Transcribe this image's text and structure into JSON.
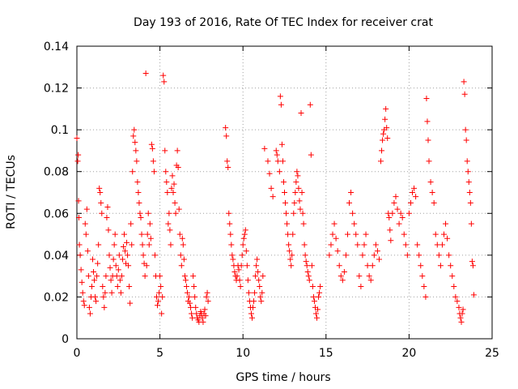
{
  "chart_data": {
    "type": "scatter",
    "title": "Day 193 of 2016, Rate Of TEC Index for receiver crat",
    "xlabel": "GPS time / hours",
    "ylabel": "ROTI / TECUs",
    "xlim": [
      0,
      25
    ],
    "ylim": [
      0,
      0.14
    ],
    "x_ticks": [
      "0",
      "5",
      "10",
      "15",
      "20",
      "25"
    ],
    "y_ticks": [
      "0",
      "0.02",
      "0.04",
      "0.06",
      "0.08",
      "0.1",
      "0.12",
      "0.14"
    ],
    "grid": true,
    "marker": "+",
    "color": "#ff0000",
    "points": [
      [
        0.0,
        0.096
      ],
      [
        0.05,
        0.085
      ],
      [
        0.08,
        0.088
      ],
      [
        0.1,
        0.066
      ],
      [
        0.12,
        0.058
      ],
      [
        0.15,
        0.045
      ],
      [
        0.2,
        0.04
      ],
      [
        0.25,
        0.033
      ],
      [
        0.3,
        0.027
      ],
      [
        0.35,
        0.022
      ],
      [
        0.4,
        0.018
      ],
      [
        0.45,
        0.016
      ],
      [
        0.5,
        0.055
      ],
      [
        0.55,
        0.05
      ],
      [
        0.6,
        0.062
      ],
      [
        0.65,
        0.042
      ],
      [
        0.7,
        0.03
      ],
      [
        0.75,
        0.015
      ],
      [
        0.8,
        0.012
      ],
      [
        0.85,
        0.02
      ],
      [
        0.9,
        0.025
      ],
      [
        0.95,
        0.038
      ],
      [
        1.0,
        0.032
      ],
      [
        1.05,
        0.028
      ],
      [
        1.1,
        0.02
      ],
      [
        1.15,
        0.018
      ],
      [
        1.2,
        0.03
      ],
      [
        1.25,
        0.036
      ],
      [
        1.3,
        0.045
      ],
      [
        1.35,
        0.072
      ],
      [
        1.4,
        0.07
      ],
      [
        1.45,
        0.065
      ],
      [
        1.5,
        0.06
      ],
      [
        1.55,
        0.025
      ],
      [
        1.6,
        0.02
      ],
      [
        1.65,
        0.015
      ],
      [
        1.7,
        0.022
      ],
      [
        1.75,
        0.03
      ],
      [
        1.8,
        0.058
      ],
      [
        1.85,
        0.063
      ],
      [
        1.9,
        0.052
      ],
      [
        1.95,
        0.04
      ],
      [
        2.0,
        0.034
      ],
      [
        2.05,
        0.028
      ],
      [
        2.1,
        0.022
      ],
      [
        2.15,
        0.03
      ],
      [
        2.2,
        0.038
      ],
      [
        2.25,
        0.045
      ],
      [
        2.3,
        0.05
      ],
      [
        2.35,
        0.035
      ],
      [
        2.4,
        0.03
      ],
      [
        2.45,
        0.025
      ],
      [
        2.5,
        0.033
      ],
      [
        2.55,
        0.04
      ],
      [
        2.6,
        0.028
      ],
      [
        2.65,
        0.022
      ],
      [
        2.7,
        0.03
      ],
      [
        2.75,
        0.038
      ],
      [
        2.8,
        0.044
      ],
      [
        2.85,
        0.05
      ],
      [
        2.9,
        0.042
      ],
      [
        2.95,
        0.036
      ],
      [
        3.0,
        0.046
      ],
      [
        3.05,
        0.04
      ],
      [
        3.1,
        0.035
      ],
      [
        3.15,
        0.025
      ],
      [
        3.2,
        0.017
      ],
      [
        3.25,
        0.055
      ],
      [
        3.3,
        0.045
      ],
      [
        3.35,
        0.08
      ],
      [
        3.4,
        0.097
      ],
      [
        3.45,
        0.1
      ],
      [
        3.5,
        0.094
      ],
      [
        3.55,
        0.09
      ],
      [
        3.6,
        0.085
      ],
      [
        3.65,
        0.075
      ],
      [
        3.7,
        0.07
      ],
      [
        3.75,
        0.065
      ],
      [
        3.8,
        0.06
      ],
      [
        3.85,
        0.058
      ],
      [
        3.9,
        0.05
      ],
      [
        3.95,
        0.045
      ],
      [
        4.0,
        0.04
      ],
      [
        4.05,
        0.036
      ],
      [
        4.1,
        0.03
      ],
      [
        4.15,
        0.127
      ],
      [
        4.2,
        0.035
      ],
      [
        4.25,
        0.05
      ],
      [
        4.3,
        0.06
      ],
      [
        4.35,
        0.045
      ],
      [
        4.4,
        0.055
      ],
      [
        4.45,
        0.048
      ],
      [
        4.5,
        0.093
      ],
      [
        4.55,
        0.091
      ],
      [
        4.6,
        0.085
      ],
      [
        4.65,
        0.08
      ],
      [
        4.7,
        0.04
      ],
      [
        4.75,
        0.03
      ],
      [
        4.8,
        0.02
      ],
      [
        4.85,
        0.016
      ],
      [
        4.9,
        0.018
      ],
      [
        4.95,
        0.022
      ],
      [
        5.0,
        0.03
      ],
      [
        5.05,
        0.025
      ],
      [
        5.1,
        0.012
      ],
      [
        5.15,
        0.02
      ],
      [
        5.2,
        0.126
      ],
      [
        5.25,
        0.123
      ],
      [
        5.3,
        0.09
      ],
      [
        5.35,
        0.08
      ],
      [
        5.4,
        0.075
      ],
      [
        5.45,
        0.07
      ],
      [
        5.5,
        0.055
      ],
      [
        5.55,
        0.06
      ],
      [
        5.6,
        0.052
      ],
      [
        5.65,
        0.045
      ],
      [
        5.7,
        0.072
      ],
      [
        5.75,
        0.078
      ],
      [
        5.8,
        0.07
      ],
      [
        5.85,
        0.074
      ],
      [
        5.9,
        0.065
      ],
      [
        5.95,
        0.06
      ],
      [
        6.0,
        0.083
      ],
      [
        6.05,
        0.09
      ],
      [
        6.1,
        0.082
      ],
      [
        6.15,
        0.062
      ],
      [
        6.2,
        0.05
      ],
      [
        6.25,
        0.04
      ],
      [
        6.3,
        0.035
      ],
      [
        6.35,
        0.048
      ],
      [
        6.4,
        0.045
      ],
      [
        6.45,
        0.038
      ],
      [
        6.5,
        0.03
      ],
      [
        6.55,
        0.028
      ],
      [
        6.6,
        0.025
      ],
      [
        6.65,
        0.022
      ],
      [
        6.7,
        0.018
      ],
      [
        6.75,
        0.02
      ],
      [
        6.8,
        0.017
      ],
      [
        6.85,
        0.015
      ],
      [
        6.9,
        0.012
      ],
      [
        6.95,
        0.01
      ],
      [
        7.0,
        0.03
      ],
      [
        7.05,
        0.025
      ],
      [
        7.1,
        0.02
      ],
      [
        7.15,
        0.015
      ],
      [
        7.2,
        0.012
      ],
      [
        7.25,
        0.01
      ],
      [
        7.3,
        0.009
      ],
      [
        7.35,
        0.008
      ],
      [
        7.4,
        0.011
      ],
      [
        7.45,
        0.013
      ],
      [
        7.5,
        0.012
      ],
      [
        7.55,
        0.01
      ],
      [
        7.6,
        0.008
      ],
      [
        7.65,
        0.012
      ],
      [
        7.7,
        0.014
      ],
      [
        7.75,
        0.011
      ],
      [
        7.8,
        0.02
      ],
      [
        7.85,
        0.022
      ],
      [
        7.9,
        0.018
      ],
      [
        8.95,
        0.101
      ],
      [
        9.0,
        0.097
      ],
      [
        9.05,
        0.085
      ],
      [
        9.1,
        0.082
      ],
      [
        9.15,
        0.06
      ],
      [
        9.2,
        0.055
      ],
      [
        9.25,
        0.05
      ],
      [
        9.3,
        0.045
      ],
      [
        9.35,
        0.04
      ],
      [
        9.4,
        0.038
      ],
      [
        9.45,
        0.035
      ],
      [
        9.5,
        0.032
      ],
      [
        9.55,
        0.03
      ],
      [
        9.6,
        0.028
      ],
      [
        9.65,
        0.03
      ],
      [
        9.7,
        0.035
      ],
      [
        9.75,
        0.033
      ],
      [
        9.8,
        0.028
      ],
      [
        9.85,
        0.025
      ],
      [
        9.9,
        0.035
      ],
      [
        9.95,
        0.04
      ],
      [
        10.0,
        0.045
      ],
      [
        10.05,
        0.048
      ],
      [
        10.1,
        0.05
      ],
      [
        10.15,
        0.052
      ],
      [
        10.2,
        0.042
      ],
      [
        10.25,
        0.035
      ],
      [
        10.3,
        0.028
      ],
      [
        10.35,
        0.022
      ],
      [
        10.4,
        0.018
      ],
      [
        10.45,
        0.015
      ],
      [
        10.5,
        0.012
      ],
      [
        10.55,
        0.01
      ],
      [
        10.6,
        0.015
      ],
      [
        10.65,
        0.018
      ],
      [
        10.7,
        0.022
      ],
      [
        10.75,
        0.03
      ],
      [
        10.8,
        0.035
      ],
      [
        10.85,
        0.038
      ],
      [
        10.9,
        0.032
      ],
      [
        10.95,
        0.028
      ],
      [
        11.0,
        0.025
      ],
      [
        11.05,
        0.02
      ],
      [
        11.1,
        0.018
      ],
      [
        11.15,
        0.022
      ],
      [
        11.2,
        0.03
      ],
      [
        11.3,
        0.091
      ],
      [
        11.5,
        0.085
      ],
      [
        11.6,
        0.079
      ],
      [
        11.7,
        0.072
      ],
      [
        11.8,
        0.068
      ],
      [
        12.0,
        0.09
      ],
      [
        12.05,
        0.088
      ],
      [
        12.1,
        0.085
      ],
      [
        12.2,
        0.08
      ],
      [
        12.25,
        0.116
      ],
      [
        12.3,
        0.112
      ],
      [
        12.35,
        0.093
      ],
      [
        12.4,
        0.085
      ],
      [
        12.45,
        0.075
      ],
      [
        12.5,
        0.07
      ],
      [
        12.55,
        0.065
      ],
      [
        12.6,
        0.06
      ],
      [
        12.65,
        0.055
      ],
      [
        12.7,
        0.05
      ],
      [
        12.75,
        0.045
      ],
      [
        12.8,
        0.042
      ],
      [
        12.85,
        0.038
      ],
      [
        12.9,
        0.035
      ],
      [
        12.95,
        0.04
      ],
      [
        13.0,
        0.05
      ],
      [
        13.05,
        0.06
      ],
      [
        13.1,
        0.065
      ],
      [
        13.15,
        0.07
      ],
      [
        13.2,
        0.075
      ],
      [
        13.25,
        0.08
      ],
      [
        13.3,
        0.078
      ],
      [
        13.35,
        0.072
      ],
      [
        13.4,
        0.066
      ],
      [
        13.45,
        0.062
      ],
      [
        13.5,
        0.108
      ],
      [
        13.55,
        0.07
      ],
      [
        13.6,
        0.06
      ],
      [
        13.65,
        0.055
      ],
      [
        13.7,
        0.045
      ],
      [
        13.75,
        0.04
      ],
      [
        13.8,
        0.037
      ],
      [
        13.85,
        0.035
      ],
      [
        13.9,
        0.032
      ],
      [
        13.95,
        0.03
      ],
      [
        14.0,
        0.028
      ],
      [
        14.05,
        0.112
      ],
      [
        14.1,
        0.088
      ],
      [
        14.15,
        0.035
      ],
      [
        14.2,
        0.025
      ],
      [
        14.25,
        0.02
      ],
      [
        14.3,
        0.018
      ],
      [
        14.35,
        0.015
      ],
      [
        14.4,
        0.012
      ],
      [
        14.45,
        0.01
      ],
      [
        14.5,
        0.014
      ],
      [
        14.55,
        0.02
      ],
      [
        14.6,
        0.022
      ],
      [
        14.65,
        0.025
      ],
      [
        15.2,
        0.04
      ],
      [
        15.3,
        0.045
      ],
      [
        15.4,
        0.05
      ],
      [
        15.5,
        0.055
      ],
      [
        15.6,
        0.048
      ],
      [
        15.7,
        0.042
      ],
      [
        15.8,
        0.035
      ],
      [
        15.9,
        0.03
      ],
      [
        16.0,
        0.028
      ],
      [
        16.1,
        0.032
      ],
      [
        16.2,
        0.04
      ],
      [
        16.3,
        0.05
      ],
      [
        16.4,
        0.065
      ],
      [
        16.5,
        0.07
      ],
      [
        16.6,
        0.06
      ],
      [
        16.7,
        0.055
      ],
      [
        16.8,
        0.05
      ],
      [
        16.9,
        0.045
      ],
      [
        17.0,
        0.03
      ],
      [
        17.1,
        0.025
      ],
      [
        17.2,
        0.04
      ],
      [
        17.3,
        0.045
      ],
      [
        17.4,
        0.05
      ],
      [
        17.5,
        0.035
      ],
      [
        17.6,
        0.03
      ],
      [
        17.7,
        0.028
      ],
      [
        17.8,
        0.035
      ],
      [
        17.9,
        0.04
      ],
      [
        18.0,
        0.045
      ],
      [
        18.1,
        0.042
      ],
      [
        18.2,
        0.038
      ],
      [
        18.3,
        0.085
      ],
      [
        18.35,
        0.09
      ],
      [
        18.4,
        0.095
      ],
      [
        18.45,
        0.098
      ],
      [
        18.5,
        0.1
      ],
      [
        18.55,
        0.105
      ],
      [
        18.6,
        0.11
      ],
      [
        18.65,
        0.101
      ],
      [
        18.7,
        0.096
      ],
      [
        18.75,
        0.06
      ],
      [
        18.8,
        0.058
      ],
      [
        18.85,
        0.052
      ],
      [
        18.9,
        0.047
      ],
      [
        19.0,
        0.06
      ],
      [
        19.1,
        0.065
      ],
      [
        19.2,
        0.068
      ],
      [
        19.3,
        0.062
      ],
      [
        19.4,
        0.055
      ],
      [
        19.5,
        0.06
      ],
      [
        19.6,
        0.058
      ],
      [
        19.7,
        0.05
      ],
      [
        19.8,
        0.045
      ],
      [
        19.9,
        0.04
      ],
      [
        20.0,
        0.06
      ],
      [
        20.1,
        0.065
      ],
      [
        20.2,
        0.07
      ],
      [
        20.3,
        0.072
      ],
      [
        20.4,
        0.068
      ],
      [
        20.5,
        0.045
      ],
      [
        20.6,
        0.04
      ],
      [
        20.7,
        0.035
      ],
      [
        20.8,
        0.03
      ],
      [
        20.9,
        0.025
      ],
      [
        21.0,
        0.02
      ],
      [
        21.05,
        0.115
      ],
      [
        21.1,
        0.104
      ],
      [
        21.15,
        0.095
      ],
      [
        21.2,
        0.085
      ],
      [
        21.3,
        0.075
      ],
      [
        21.4,
        0.07
      ],
      [
        21.5,
        0.065
      ],
      [
        21.6,
        0.05
      ],
      [
        21.7,
        0.045
      ],
      [
        21.8,
        0.04
      ],
      [
        21.9,
        0.035
      ],
      [
        22.0,
        0.045
      ],
      [
        22.1,
        0.05
      ],
      [
        22.2,
        0.055
      ],
      [
        22.3,
        0.048
      ],
      [
        22.4,
        0.04
      ],
      [
        22.5,
        0.035
      ],
      [
        22.6,
        0.03
      ],
      [
        22.7,
        0.025
      ],
      [
        22.8,
        0.02
      ],
      [
        22.9,
        0.018
      ],
      [
        23.0,
        0.015
      ],
      [
        23.05,
        0.012
      ],
      [
        23.1,
        0.01
      ],
      [
        23.15,
        0.008
      ],
      [
        23.2,
        0.012
      ],
      [
        23.25,
        0.014
      ],
      [
        23.3,
        0.123
      ],
      [
        23.35,
        0.117
      ],
      [
        23.4,
        0.1
      ],
      [
        23.45,
        0.095
      ],
      [
        23.5,
        0.085
      ],
      [
        23.55,
        0.08
      ],
      [
        23.6,
        0.075
      ],
      [
        23.65,
        0.07
      ],
      [
        23.7,
        0.065
      ],
      [
        23.75,
        0.055
      ],
      [
        23.8,
        0.037
      ],
      [
        23.85,
        0.035
      ],
      [
        23.9,
        0.021
      ]
    ]
  }
}
